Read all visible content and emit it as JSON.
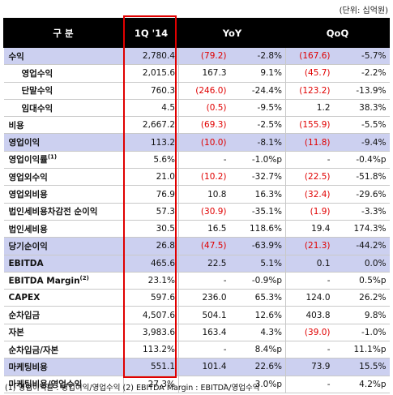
{
  "unit_label": "(단위: 십억원)",
  "header": [
    "구 분",
    "1Q '14",
    "YoY",
    "",
    "QoQ",
    ""
  ],
  "rows": [
    {
      "label": "수익",
      "hl": true,
      "gs": false,
      "ind": false,
      "sup": "",
      "cells": [
        {
          "v": "2,780.4",
          "neg": false
        },
        {
          "v": "(79.2)",
          "neg": true
        },
        {
          "v": "-2.8%",
          "neg": false
        },
        {
          "v": "(167.6)",
          "neg": true
        },
        {
          "v": "-5.7%",
          "neg": false
        }
      ]
    },
    {
      "label": "영업수익",
      "hl": false,
      "gs": false,
      "ind": true,
      "sup": "",
      "cells": [
        {
          "v": "2,015.6",
          "neg": false
        },
        {
          "v": "167.3",
          "neg": false
        },
        {
          "v": "9.1%",
          "neg": false
        },
        {
          "v": "(45.7)",
          "neg": true
        },
        {
          "v": "-2.2%",
          "neg": false
        }
      ]
    },
    {
      "label": "단말수익",
      "hl": false,
      "gs": false,
      "ind": true,
      "sup": "",
      "cells": [
        {
          "v": "760.3",
          "neg": false
        },
        {
          "v": "(246.0)",
          "neg": true
        },
        {
          "v": "-24.4%",
          "neg": false
        },
        {
          "v": "(123.2)",
          "neg": true
        },
        {
          "v": "-13.9%",
          "neg": false
        }
      ]
    },
    {
      "label": "임대수익",
      "hl": false,
      "gs": false,
      "ind": true,
      "sup": "",
      "cells": [
        {
          "v": "4.5",
          "neg": false
        },
        {
          "v": "(0.5)",
          "neg": true
        },
        {
          "v": "-9.5%",
          "neg": false
        },
        {
          "v": "1.2",
          "neg": false
        },
        {
          "v": "38.3%",
          "neg": false
        }
      ]
    },
    {
      "label": "비용",
      "hl": false,
      "gs": true,
      "ind": false,
      "sup": "",
      "cells": [
        {
          "v": "2,667.2",
          "neg": false
        },
        {
          "v": "(69.3)",
          "neg": true
        },
        {
          "v": "-2.5%",
          "neg": false
        },
        {
          "v": "(155.9)",
          "neg": true
        },
        {
          "v": "-5.5%",
          "neg": false
        }
      ]
    },
    {
      "label": "영업이익",
      "hl": true,
      "gs": true,
      "ind": false,
      "sup": "",
      "cells": [
        {
          "v": "113.2",
          "neg": false
        },
        {
          "v": "(10.0)",
          "neg": true
        },
        {
          "v": "-8.1%",
          "neg": false
        },
        {
          "v": "(11.8)",
          "neg": true
        },
        {
          "v": "-9.4%",
          "neg": false
        }
      ]
    },
    {
      "label": "영업이익률",
      "hl": false,
      "gs": false,
      "ind": false,
      "sup": "(1)",
      "cells": [
        {
          "v": "5.6%",
          "neg": false
        },
        {
          "v": "-",
          "neg": false
        },
        {
          "v": "-1.0%p",
          "neg": false
        },
        {
          "v": "-",
          "neg": false
        },
        {
          "v": "-0.4%p",
          "neg": false
        }
      ]
    },
    {
      "label": "영업외수익",
      "hl": false,
      "gs": true,
      "ind": false,
      "sup": "",
      "cells": [
        {
          "v": "21.0",
          "neg": false
        },
        {
          "v": "(10.2)",
          "neg": true
        },
        {
          "v": "-32.7%",
          "neg": false
        },
        {
          "v": "(22.5)",
          "neg": true
        },
        {
          "v": "-51.8%",
          "neg": false
        }
      ]
    },
    {
      "label": "영업외비용",
      "hl": false,
      "gs": false,
      "ind": false,
      "sup": "",
      "cells": [
        {
          "v": "76.9",
          "neg": false
        },
        {
          "v": "10.8",
          "neg": false
        },
        {
          "v": "16.3%",
          "neg": false
        },
        {
          "v": "(32.4)",
          "neg": true
        },
        {
          "v": "-29.6%",
          "neg": false
        }
      ]
    },
    {
      "label": "법인세비용차감전 순이익",
      "hl": false,
      "gs": false,
      "ind": false,
      "sup": "",
      "cells": [
        {
          "v": "57.3",
          "neg": false
        },
        {
          "v": "(30.9)",
          "neg": true
        },
        {
          "v": "-35.1%",
          "neg": false
        },
        {
          "v": "(1.9)",
          "neg": true
        },
        {
          "v": "-3.3%",
          "neg": false
        }
      ]
    },
    {
      "label": "법인세비용",
      "hl": false,
      "gs": false,
      "ind": false,
      "sup": "",
      "cells": [
        {
          "v": "30.5",
          "neg": false
        },
        {
          "v": "16.5",
          "neg": false
        },
        {
          "v": "118.6%",
          "neg": false
        },
        {
          "v": "19.4",
          "neg": false
        },
        {
          "v": "174.3%",
          "neg": false
        }
      ]
    },
    {
      "label": "당기순이익",
      "hl": true,
      "gs": true,
      "ind": false,
      "sup": "",
      "cells": [
        {
          "v": "26.8",
          "neg": false
        },
        {
          "v": "(47.5)",
          "neg": true
        },
        {
          "v": "-63.9%",
          "neg": false
        },
        {
          "v": "(21.3)",
          "neg": true
        },
        {
          "v": "-44.2%",
          "neg": false
        }
      ]
    },
    {
      "label": "EBITDA",
      "hl": true,
      "gs": true,
      "ind": false,
      "sup": "",
      "cells": [
        {
          "v": "465.6",
          "neg": false
        },
        {
          "v": "22.5",
          "neg": false
        },
        {
          "v": "5.1%",
          "neg": false
        },
        {
          "v": "0.1",
          "neg": false
        },
        {
          "v": "0.0%",
          "neg": false
        }
      ]
    },
    {
      "label": "EBITDA Margin",
      "hl": false,
      "gs": false,
      "ind": false,
      "sup": "(2)",
      "cells": [
        {
          "v": "23.1%",
          "neg": false
        },
        {
          "v": "-",
          "neg": false
        },
        {
          "v": "-0.9%p",
          "neg": false
        },
        {
          "v": "-",
          "neg": false
        },
        {
          "v": "0.5%p",
          "neg": false
        }
      ]
    },
    {
      "label": "CAPEX",
      "hl": false,
      "gs": false,
      "ind": false,
      "sup": "",
      "cells": [
        {
          "v": "597.6",
          "neg": false
        },
        {
          "v": "236.0",
          "neg": false
        },
        {
          "v": "65.3%",
          "neg": false
        },
        {
          "v": "124.0",
          "neg": false
        },
        {
          "v": "26.2%",
          "neg": false
        }
      ]
    },
    {
      "label": "순차입금",
      "hl": false,
      "gs": true,
      "ind": false,
      "sup": "",
      "cells": [
        {
          "v": "4,507.6",
          "neg": false
        },
        {
          "v": "504.1",
          "neg": false
        },
        {
          "v": "12.6%",
          "neg": false
        },
        {
          "v": "403.8",
          "neg": false
        },
        {
          "v": "9.8%",
          "neg": false
        }
      ]
    },
    {
      "label": "자본",
      "hl": false,
      "gs": false,
      "ind": false,
      "sup": "",
      "cells": [
        {
          "v": "3,983.6",
          "neg": false
        },
        {
          "v": "163.4",
          "neg": false
        },
        {
          "v": "4.3%",
          "neg": false
        },
        {
          "v": "(39.0)",
          "neg": true
        },
        {
          "v": "-1.0%",
          "neg": false
        }
      ]
    },
    {
      "label": "순차입금/자본",
      "hl": false,
      "gs": false,
      "ind": false,
      "sup": "",
      "cells": [
        {
          "v": "113.2%",
          "neg": false
        },
        {
          "v": "-",
          "neg": false
        },
        {
          "v": "8.4%p",
          "neg": false
        },
        {
          "v": "-",
          "neg": false
        },
        {
          "v": "11.1%p",
          "neg": false
        }
      ]
    },
    {
      "label": "마케팅비용",
      "hl": true,
      "gs": true,
      "ind": false,
      "sup": "",
      "cells": [
        {
          "v": "551.1",
          "neg": false
        },
        {
          "v": "101.4",
          "neg": false
        },
        {
          "v": "22.6%",
          "neg": false
        },
        {
          "v": "73.9",
          "neg": false
        },
        {
          "v": "15.5%",
          "neg": false
        }
      ]
    },
    {
      "label": "마케팅비용/영업수익",
      "hl": false,
      "gs": false,
      "ind": false,
      "sup": "",
      "cells": [
        {
          "v": "27.3%",
          "neg": false
        },
        {
          "v": "-",
          "neg": false
        },
        {
          "v": "3.0%p",
          "neg": false
        },
        {
          "v": "-",
          "neg": false
        },
        {
          "v": "4.2%p",
          "neg": false
        }
      ]
    }
  ],
  "footnote": "(1) 영업이익률 : 영업이익/영업수익    (2) EBITDA Margin : EBITDA/영업수익",
  "colors": {
    "header_bg": "#000000",
    "highlight_bg": "#ccd0f0",
    "negative": "#e00000",
    "focus_box": "#e00000"
  }
}
